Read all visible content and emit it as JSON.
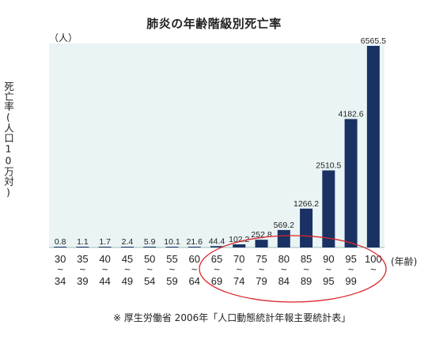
{
  "chart_data": {
    "type": "bar",
    "title": "肺炎の年齢階級別死亡率",
    "ylabel": "死亡率(人口10万対)",
    "yunit": "（人）",
    "xunit": "(年齢)",
    "categories": [
      {
        "start": "30",
        "end": "34"
      },
      {
        "start": "35",
        "end": "39"
      },
      {
        "start": "40",
        "end": "44"
      },
      {
        "start": "45",
        "end": "49"
      },
      {
        "start": "50",
        "end": "54"
      },
      {
        "start": "55",
        "end": "59"
      },
      {
        "start": "60",
        "end": "64"
      },
      {
        "start": "65",
        "end": "69"
      },
      {
        "start": "70",
        "end": "74"
      },
      {
        "start": "75",
        "end": "79"
      },
      {
        "start": "80",
        "end": "84"
      },
      {
        "start": "85",
        "end": "89"
      },
      {
        "start": "90",
        "end": "95"
      },
      {
        "start": "95",
        "end": "99"
      },
      {
        "start": "100",
        "end": ""
      }
    ],
    "values": [
      0.8,
      1.1,
      1.7,
      2.4,
      5.9,
      10.1,
      21.6,
      44.4,
      102.2,
      252.8,
      569.2,
      1266.2,
      2510.5,
      4182.6,
      6565.5
    ],
    "value_labels": [
      "0.8",
      "1.1",
      "1.7",
      "2.4",
      "5.9",
      "10.1",
      "21.6",
      "44.4",
      "102.2",
      "252.8",
      "569.2",
      "1266.2",
      "2510.5",
      "4182.6",
      "6565.5"
    ],
    "ylim": [
      0,
      6565.5
    ],
    "highlighted_range": "65–99",
    "colors": {
      "bar": "#1a3263",
      "plot_background": "#eaf4f5",
      "highlight": "#d9262b"
    }
  },
  "source_note": "※ 厚生労働省 2006年「人口動態統計年報主要統計表」"
}
